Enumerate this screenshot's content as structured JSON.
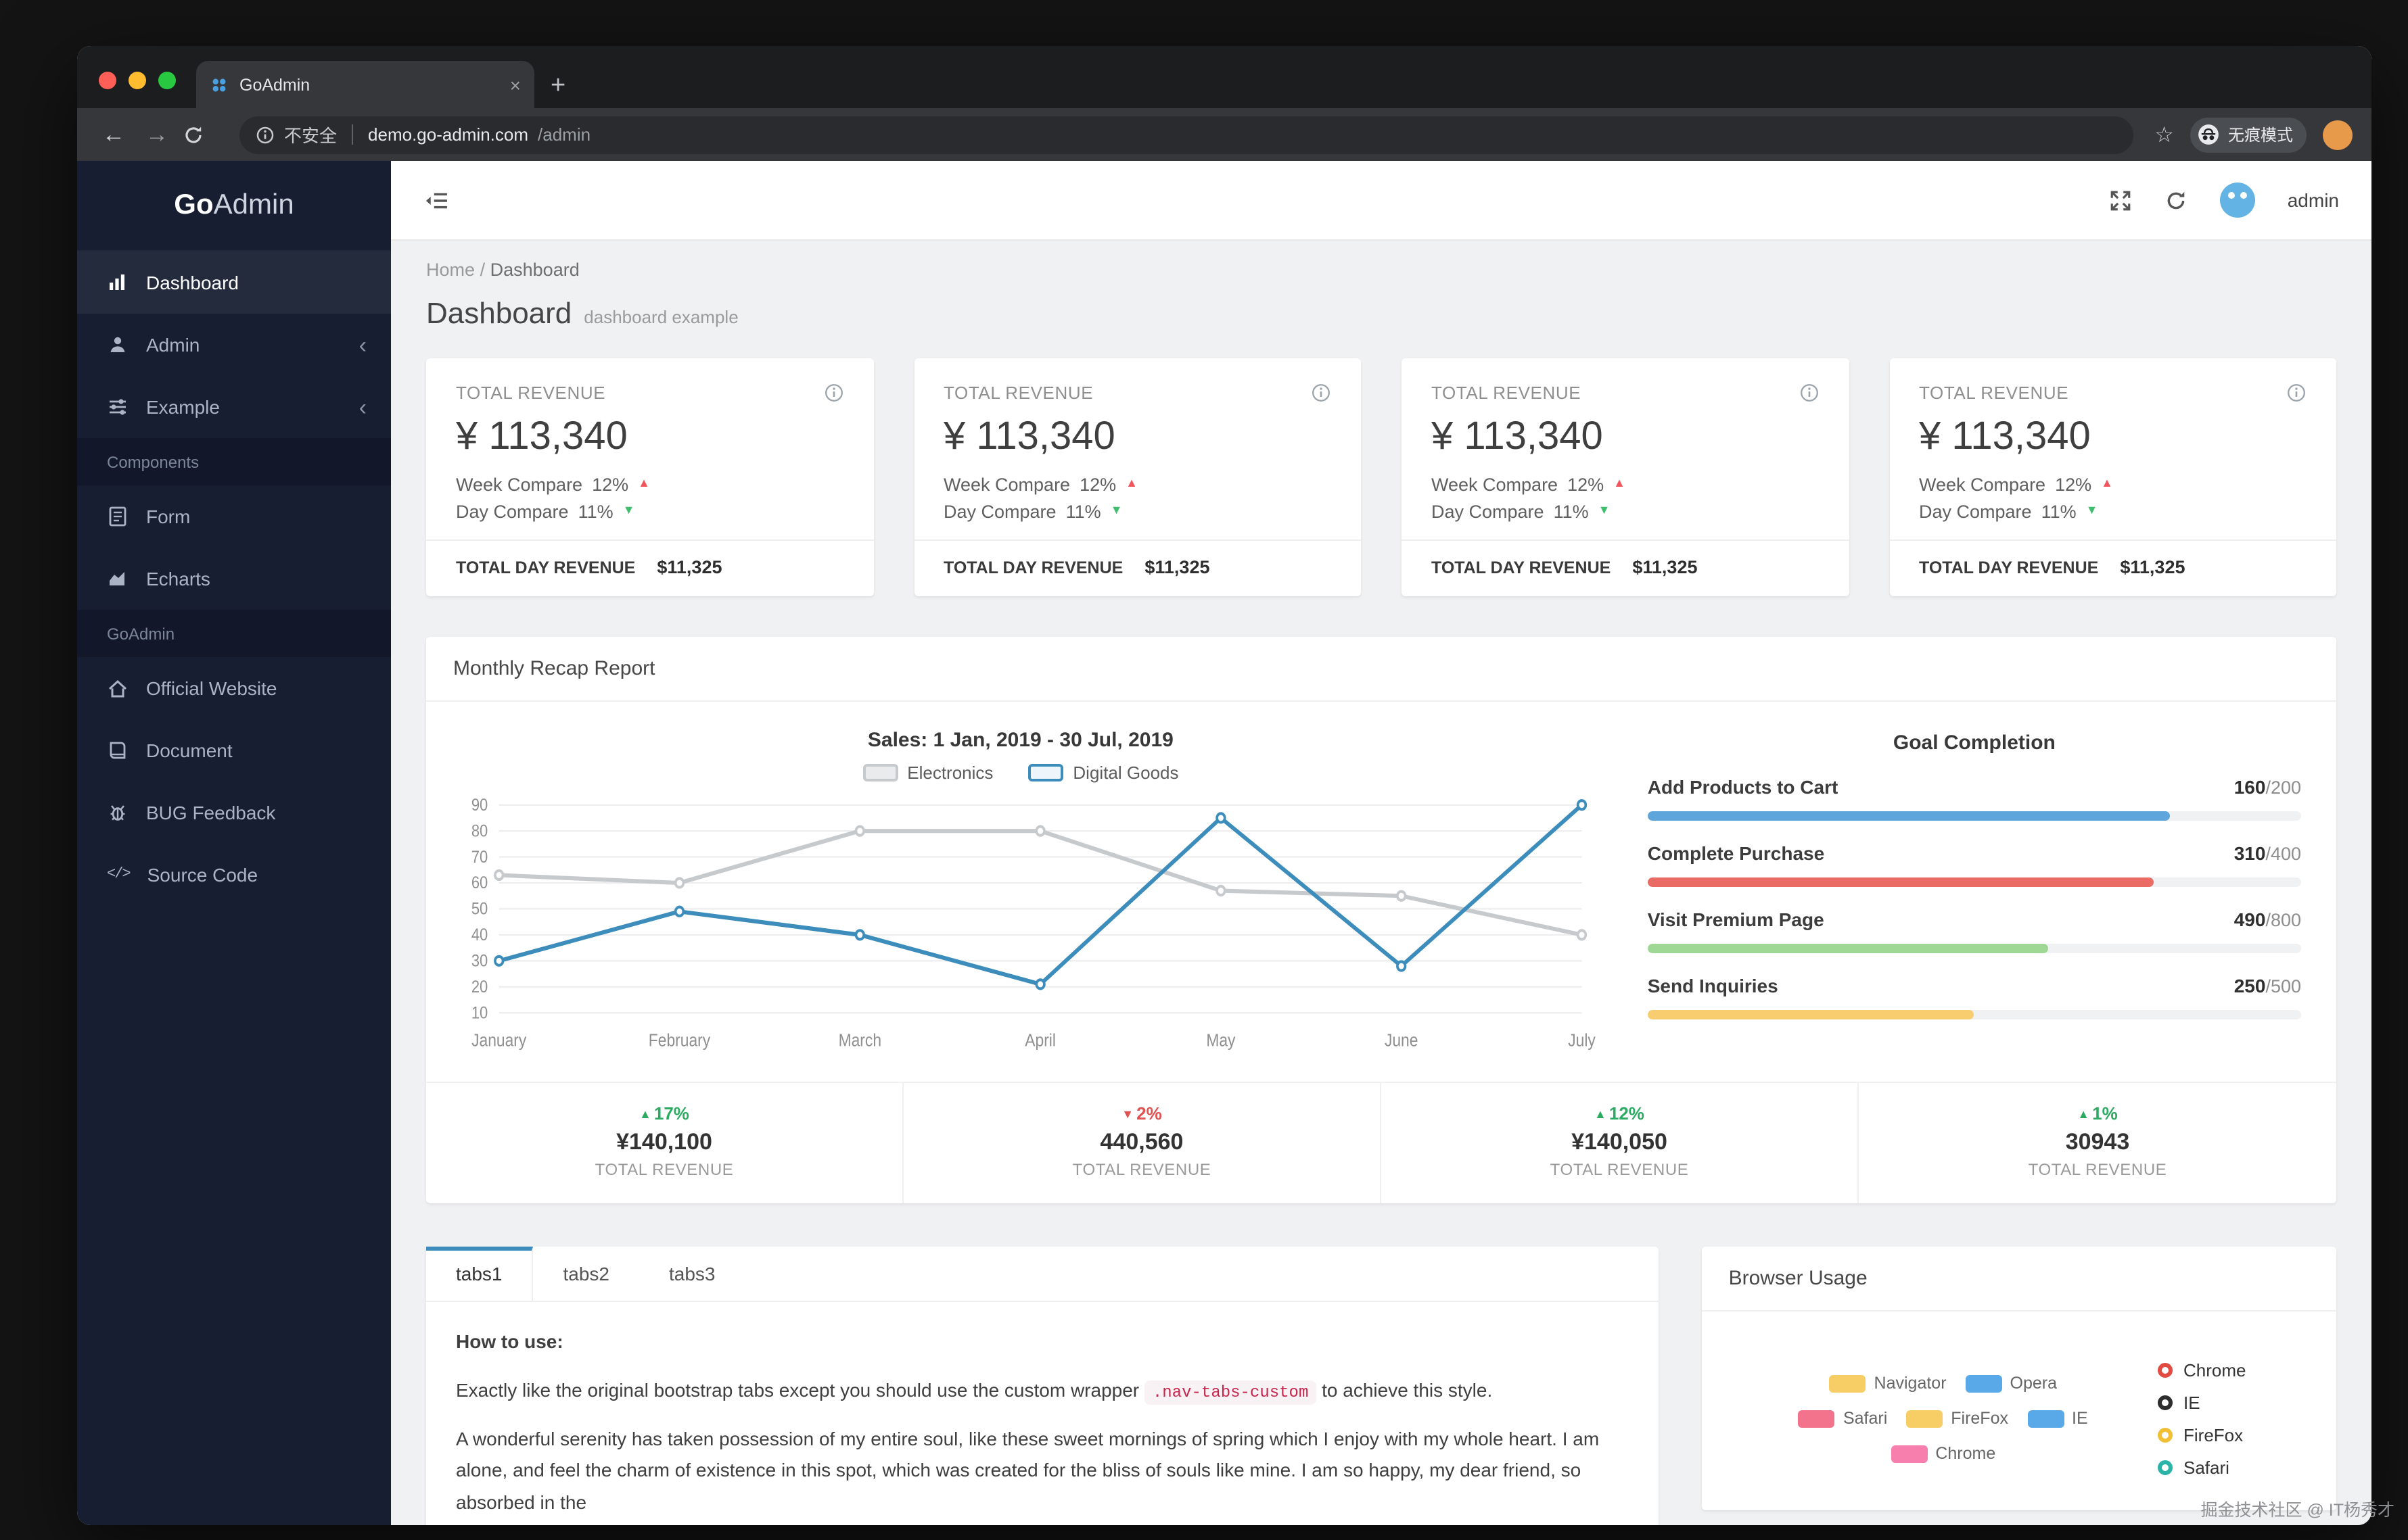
{
  "colors": {
    "accent_blue": "#3c8dbc",
    "positive_green": "#2bab62",
    "negative_red": "#e05252"
  },
  "browser": {
    "tab_title": "GoAdmin",
    "security_label": "不安全",
    "url_host": "demo.go-admin.com",
    "url_path": "/admin",
    "incognito_label": "无痕模式"
  },
  "icons": {
    "back": "←",
    "forward": "→",
    "star": "☆",
    "new_tab": "+",
    "close_tab": "×",
    "chevron_collapsed": "‹",
    "code": "</>",
    "crumb_separator": "/"
  },
  "sidebar": {
    "logo_bold": "Go",
    "logo_light": "Admin",
    "menu_top": [
      {
        "label": "Dashboard"
      },
      {
        "label": "Admin"
      },
      {
        "label": "Example"
      }
    ],
    "section_components": "Components",
    "menu_components": [
      {
        "label": "Form"
      },
      {
        "label": "Echarts"
      }
    ],
    "section_goadmin": "GoAdmin",
    "menu_goadmin": [
      {
        "label": "Official Website"
      },
      {
        "label": "Document"
      },
      {
        "label": "BUG Feedback"
      },
      {
        "label": "Source Code"
      }
    ]
  },
  "topbar": {
    "username": "admin"
  },
  "breadcrumb": {
    "home": "Home",
    "current": "Dashboard"
  },
  "page_header": {
    "title": "Dashboard",
    "subtitle": "dashboard example"
  },
  "stat_cards": [
    {
      "title": "TOTAL REVENUE",
      "amount": "¥ 113,340",
      "week_label": "Week Compare",
      "week_value": "12%",
      "week_arrow": "▲",
      "week_arrow_color": "#f2545b",
      "day_label": "Day Compare",
      "day_value": "11%",
      "day_arrow": "▼",
      "day_arrow_color": "#3fbf6e",
      "footer_label": "TOTAL DAY REVENUE",
      "footer_value": "$11,325"
    },
    {
      "title": "TOTAL REVENUE",
      "amount": "¥ 113,340",
      "week_label": "Week Compare",
      "week_value": "12%",
      "week_arrow": "▲",
      "week_arrow_color": "#f2545b",
      "day_label": "Day Compare",
      "day_value": "11%",
      "day_arrow": "▼",
      "day_arrow_color": "#3fbf6e",
      "footer_label": "TOTAL DAY REVENUE",
      "footer_value": "$11,325"
    },
    {
      "title": "TOTAL REVENUE",
      "amount": "¥ 113,340",
      "week_label": "Week Compare",
      "week_value": "12%",
      "week_arrow": "▲",
      "week_arrow_color": "#f2545b",
      "day_label": "Day Compare",
      "day_value": "11%",
      "day_arrow": "▼",
      "day_arrow_color": "#3fbf6e",
      "footer_label": "TOTAL DAY REVENUE",
      "footer_value": "$11,325"
    },
    {
      "title": "TOTAL REVENUE",
      "amount": "¥ 113,340",
      "week_label": "Week Compare",
      "week_value": "12%",
      "week_arrow": "▲",
      "week_arrow_color": "#f2545b",
      "day_label": "Day Compare",
      "day_value": "11%",
      "day_arrow": "▼",
      "day_arrow_color": "#3fbf6e",
      "footer_label": "TOTAL DAY REVENUE",
      "footer_value": "$11,325"
    }
  ],
  "recap": {
    "panel_title": "Monthly Recap Report"
  },
  "chart_data": {
    "type": "line",
    "title": "Sales: 1 Jan, 2019 - 30 Jul, 2019",
    "categories": [
      "January",
      "February",
      "March",
      "April",
      "May",
      "June",
      "July"
    ],
    "series": [
      {
        "name": "Electronics",
        "color": "#c7cacd",
        "swatch_fill": "#eaebed",
        "values": [
          63,
          60,
          80,
          80,
          57,
          55,
          40
        ]
      },
      {
        "name": "Digital Goods",
        "color": "#3c8dbc",
        "swatch_fill": "#eef6fc",
        "values": [
          30,
          49,
          40,
          21,
          85,
          28,
          90
        ]
      }
    ],
    "ylim": [
      10,
      90
    ],
    "yticks": [
      10,
      20,
      30,
      40,
      50,
      60,
      70,
      80,
      90
    ],
    "grid": true,
    "legend_position": "top"
  },
  "goal_completion": {
    "title": "Goal Completion",
    "items": [
      {
        "label": "Add Products to Cart",
        "value": 160,
        "total": 200,
        "value_display": "160",
        "total_display": "/200",
        "color": "#5da5da"
      },
      {
        "label": "Complete Purchase",
        "value": 310,
        "total": 400,
        "value_display": "310",
        "total_display": "/400",
        "color": "#e96b63"
      },
      {
        "label": "Visit Premium Page",
        "value": 490,
        "total": 800,
        "value_display": "490",
        "total_display": "/800",
        "color": "#9fd894"
      },
      {
        "label": "Send Inquiries",
        "value": 250,
        "total": 500,
        "value_display": "250",
        "total_display": "/500",
        "color": "#f8cd70"
      }
    ]
  },
  "summary_stats": [
    {
      "arrow": "▲",
      "delta": "17%",
      "color": "#2bab62",
      "value": "¥140,100",
      "label": "TOTAL REVENUE"
    },
    {
      "arrow": "▼",
      "delta": "2%",
      "color": "#e05252",
      "value": "440,560",
      "label": "TOTAL REVENUE"
    },
    {
      "arrow": "▲",
      "delta": "12%",
      "color": "#2bab62",
      "value": "¥140,050",
      "label": "TOTAL REVENUE"
    },
    {
      "arrow": "▲",
      "delta": "1%",
      "color": "#2bab62",
      "value": "30943",
      "label": "TOTAL REVENUE"
    }
  ],
  "tabs_panel": {
    "tabs": [
      "tabs1",
      "tabs2",
      "tabs3"
    ],
    "active": "tabs1",
    "heading": "How to use:",
    "body_1a": "Exactly like the original bootstrap tabs except you should use the custom wrapper ",
    "body_code": ".nav-tabs-custom",
    "body_1b": " to achieve this style.",
    "body_2": "A wonderful serenity has taken possession of my entire soul, like these sweet mornings of spring which I enjoy with my whole heart. I am alone, and feel the charm of existence in this spot, which was created for the bliss of souls like mine. I am so happy, my dear friend, so absorbed in the"
  },
  "browser_usage": {
    "title": "Browser Usage",
    "bar_legend": [
      {
        "label": "Navigator",
        "color": "#f7ce66"
      },
      {
        "label": "Opera",
        "color": "#59a9e8"
      },
      {
        "label": "Safari",
        "color": "#f3738c"
      },
      {
        "label": "FireFox",
        "color": "#f7ce66"
      },
      {
        "label": "IE",
        "color": "#59a9e8"
      },
      {
        "label": "Chrome",
        "color": "#f77fae"
      }
    ],
    "ring_legend": [
      {
        "label": "Chrome",
        "color": "#e14b42"
      },
      {
        "label": "IE",
        "color": "#2d2d2d"
      },
      {
        "label": "FireFox",
        "color": "#f2c037"
      },
      {
        "label": "Safari",
        "color": "#2bb3a8"
      }
    ]
  },
  "watermark": "掘金技术社区 @ IT杨秀才"
}
